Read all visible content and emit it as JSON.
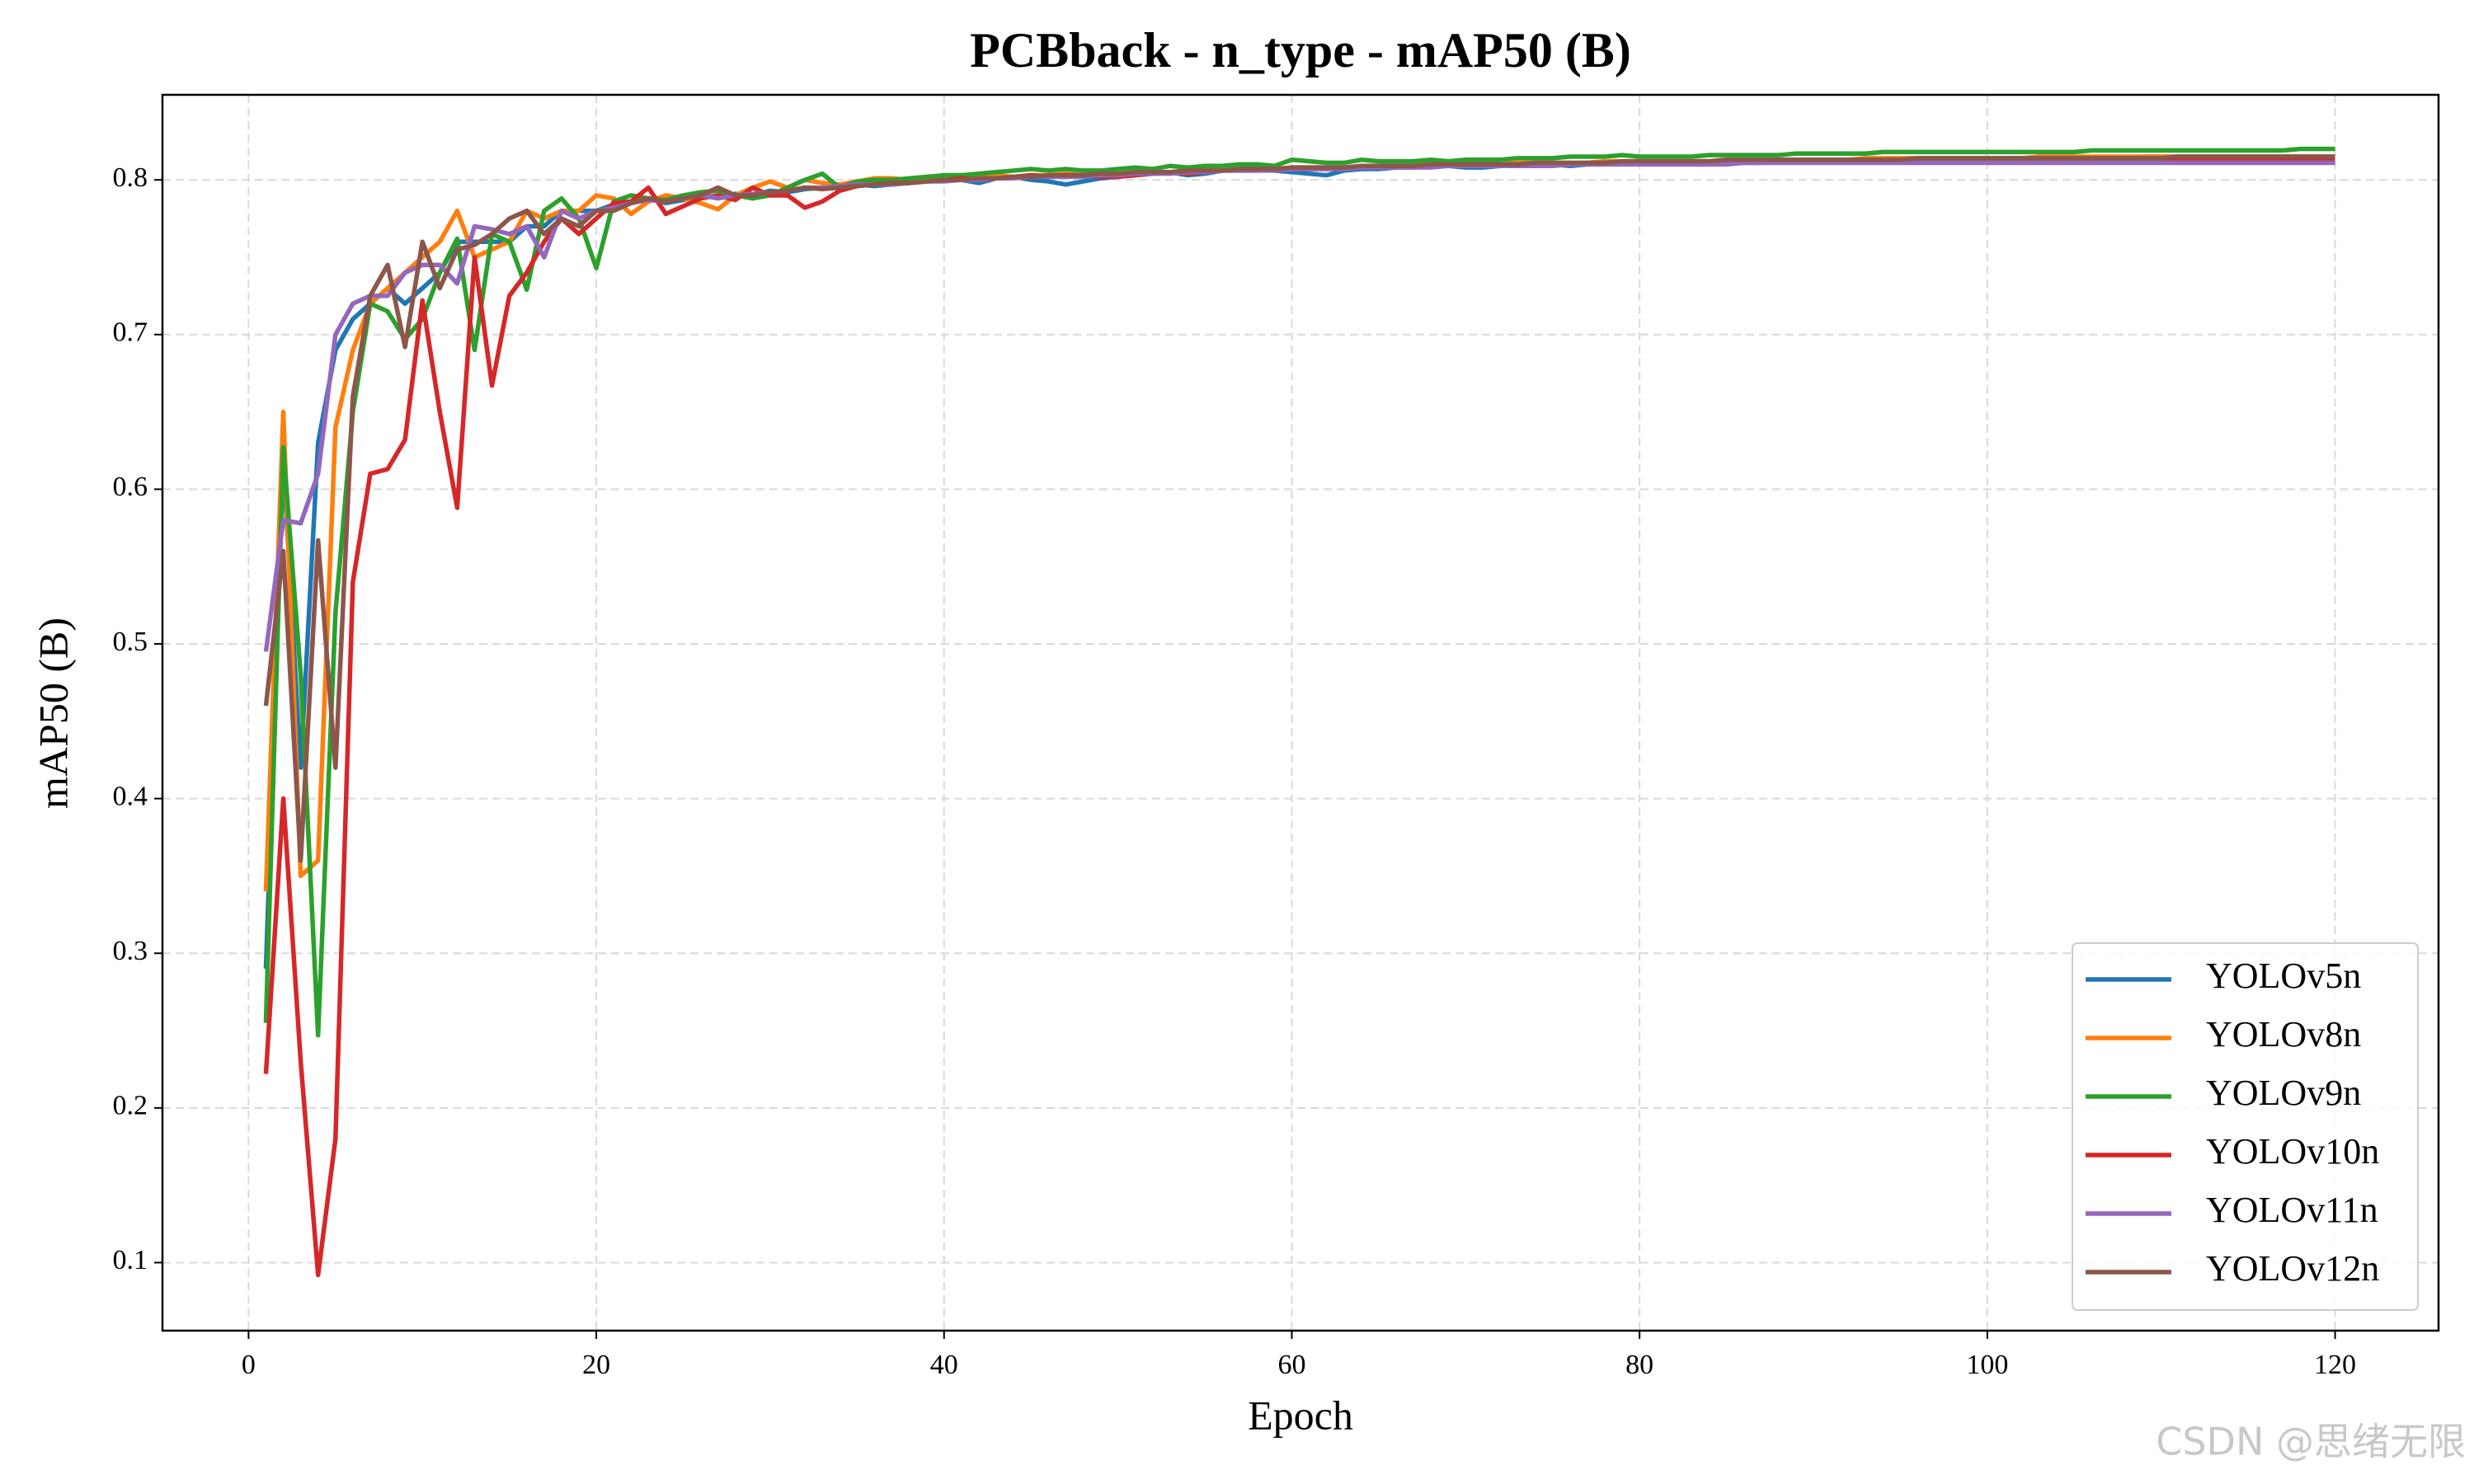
{
  "chart_data": {
    "type": "line",
    "title": "PCBback - n_type - mAP50 (B)",
    "xlabel": "Epoch",
    "ylabel": "mAP50 (B)",
    "x": [
      1,
      2,
      3,
      4,
      5,
      6,
      7,
      8,
      9,
      10,
      11,
      12,
      13,
      14,
      15,
      16,
      17,
      18,
      19,
      20,
      21,
      22,
      23,
      24,
      25,
      26,
      27,
      28,
      29,
      30,
      31,
      32,
      33,
      34,
      35,
      36,
      37,
      38,
      39,
      40,
      41,
      42,
      43,
      44,
      45,
      46,
      47,
      48,
      49,
      50,
      51,
      52,
      53,
      54,
      55,
      56,
      57,
      58,
      59,
      60,
      61,
      62,
      63,
      64,
      65,
      66,
      67,
      68,
      69,
      70,
      71,
      72,
      73,
      74,
      75,
      76,
      77,
      78,
      79,
      80,
      81,
      82,
      83,
      84,
      85,
      86,
      87,
      88,
      89,
      90,
      91,
      92,
      93,
      94,
      95,
      96,
      97,
      98,
      99,
      100,
      101,
      102,
      103,
      104,
      105,
      106,
      107,
      108,
      109,
      110,
      111,
      112,
      113,
      114,
      115,
      116,
      117,
      118,
      119,
      120
    ],
    "xlim": [
      -4.95,
      125.95
    ],
    "xticks": [
      0,
      20,
      40,
      60,
      80,
      100,
      120
    ],
    "ylim": [
      0.056,
      0.855
    ],
    "yticks": [
      0.1,
      0.2,
      0.3,
      0.4,
      0.5,
      0.6,
      0.7,
      0.8
    ],
    "grid": true,
    "legend": "lower right",
    "series": [
      {
        "name": "YOLOv5n",
        "color": "#1f77b4",
        "values": [
          0.29,
          0.62,
          0.42,
          0.63,
          0.69,
          0.71,
          0.72,
          0.73,
          0.72,
          0.73,
          0.74,
          0.76,
          0.76,
          0.76,
          0.76,
          0.77,
          0.77,
          0.78,
          0.78,
          0.78,
          0.784,
          0.786,
          0.788,
          0.785,
          0.787,
          0.79,
          0.789,
          0.791,
          0.79,
          0.793,
          0.792,
          0.794,
          0.795,
          0.796,
          0.797,
          0.796,
          0.797,
          0.798,
          0.799,
          0.8,
          0.8,
          0.798,
          0.801,
          0.802,
          0.8,
          0.799,
          0.797,
          0.799,
          0.801,
          0.802,
          0.803,
          0.804,
          0.805,
          0.803,
          0.804,
          0.806,
          0.807,
          0.809,
          0.806,
          0.805,
          0.804,
          0.803,
          0.806,
          0.807,
          0.807,
          0.808,
          0.808,
          0.809,
          0.809,
          0.808,
          0.808,
          0.809,
          0.809,
          0.81,
          0.81,
          0.809,
          0.81,
          0.81,
          0.811,
          0.811,
          0.811,
          0.811,
          0.81,
          0.81,
          0.811,
          0.811,
          0.811,
          0.812,
          0.812,
          0.812,
          0.812,
          0.812,
          0.813,
          0.813,
          0.813,
          0.813,
          0.813,
          0.813,
          0.813,
          0.813,
          0.814,
          0.814,
          0.814,
          0.814,
          0.814,
          0.814,
          0.814,
          0.814,
          0.815,
          0.815,
          0.815,
          0.815,
          0.815,
          0.815,
          0.815,
          0.815,
          0.815,
          0.815,
          0.815,
          0.815
        ]
      },
      {
        "name": "YOLOv8n",
        "color": "#ff7f0e",
        "values": [
          0.34,
          0.65,
          0.35,
          0.36,
          0.64,
          0.69,
          0.72,
          0.73,
          0.74,
          0.75,
          0.76,
          0.78,
          0.75,
          0.755,
          0.76,
          0.78,
          0.775,
          0.78,
          0.78,
          0.79,
          0.788,
          0.778,
          0.786,
          0.79,
          0.788,
          0.785,
          0.781,
          0.79,
          0.795,
          0.799,
          0.795,
          0.8,
          0.798,
          0.797,
          0.799,
          0.801,
          0.801,
          0.8,
          0.801,
          0.802,
          0.802,
          0.801,
          0.803,
          0.802,
          0.803,
          0.803,
          0.804,
          0.803,
          0.804,
          0.804,
          0.805,
          0.805,
          0.805,
          0.806,
          0.806,
          0.806,
          0.807,
          0.807,
          0.807,
          0.808,
          0.808,
          0.808,
          0.808,
          0.809,
          0.809,
          0.809,
          0.809,
          0.81,
          0.81,
          0.81,
          0.81,
          0.81,
          0.811,
          0.811,
          0.811,
          0.811,
          0.811,
          0.812,
          0.812,
          0.812,
          0.812,
          0.812,
          0.812,
          0.812,
          0.813,
          0.813,
          0.813,
          0.813,
          0.813,
          0.813,
          0.813,
          0.813,
          0.814,
          0.814,
          0.814,
          0.814,
          0.814,
          0.814,
          0.814,
          0.814,
          0.814,
          0.814,
          0.815,
          0.815,
          0.815,
          0.815,
          0.815,
          0.815,
          0.815,
          0.815,
          0.815,
          0.815,
          0.815,
          0.815,
          0.815,
          0.815,
          0.815,
          0.815,
          0.815,
          0.815
        ]
      },
      {
        "name": "YOLOv9n",
        "color": "#2ca02c",
        "values": [
          0.255,
          0.627,
          0.48,
          0.247,
          0.52,
          0.65,
          0.72,
          0.715,
          0.697,
          0.71,
          0.74,
          0.762,
          0.69,
          0.765,
          0.76,
          0.729,
          0.78,
          0.788,
          0.775,
          0.743,
          0.786,
          0.79,
          0.788,
          0.787,
          0.79,
          0.792,
          0.793,
          0.79,
          0.788,
          0.79,
          0.795,
          0.8,
          0.804,
          0.795,
          0.799,
          0.8,
          0.8,
          0.801,
          0.802,
          0.803,
          0.803,
          0.804,
          0.805,
          0.806,
          0.807,
          0.806,
          0.807,
          0.806,
          0.806,
          0.807,
          0.808,
          0.807,
          0.809,
          0.808,
          0.809,
          0.809,
          0.81,
          0.81,
          0.809,
          0.813,
          0.812,
          0.811,
          0.811,
          0.813,
          0.812,
          0.812,
          0.812,
          0.813,
          0.812,
          0.813,
          0.813,
          0.813,
          0.814,
          0.814,
          0.814,
          0.815,
          0.815,
          0.815,
          0.816,
          0.815,
          0.815,
          0.815,
          0.815,
          0.816,
          0.816,
          0.816,
          0.816,
          0.816,
          0.817,
          0.817,
          0.817,
          0.817,
          0.817,
          0.818,
          0.818,
          0.818,
          0.818,
          0.818,
          0.818,
          0.818,
          0.818,
          0.818,
          0.818,
          0.818,
          0.818,
          0.819,
          0.819,
          0.819,
          0.819,
          0.819,
          0.819,
          0.819,
          0.819,
          0.819,
          0.819,
          0.819,
          0.819,
          0.82,
          0.82,
          0.82
        ]
      },
      {
        "name": "YOLOv10n",
        "color": "#d62728",
        "values": [
          0.222,
          0.4,
          0.23,
          0.092,
          0.18,
          0.54,
          0.61,
          0.613,
          0.632,
          0.722,
          0.65,
          0.588,
          0.75,
          0.667,
          0.725,
          0.74,
          0.76,
          0.775,
          0.765,
          0.775,
          0.785,
          0.786,
          0.795,
          0.778,
          0.783,
          0.788,
          0.79,
          0.787,
          0.795,
          0.79,
          0.79,
          0.782,
          0.786,
          0.793,
          0.796,
          0.797,
          0.798,
          0.798,
          0.799,
          0.8,
          0.801,
          0.8,
          0.801,
          0.802,
          0.803,
          0.802,
          0.803,
          0.803,
          0.802,
          0.802,
          0.803,
          0.804,
          0.805,
          0.804,
          0.805,
          0.806,
          0.806,
          0.806,
          0.807,
          0.807,
          0.807,
          0.807,
          0.808,
          0.808,
          0.808,
          0.809,
          0.809,
          0.809,
          0.809,
          0.81,
          0.81,
          0.81,
          0.81,
          0.81,
          0.81,
          0.81,
          0.811,
          0.811,
          0.811,
          0.811,
          0.811,
          0.811,
          0.811,
          0.811,
          0.812,
          0.812,
          0.812,
          0.812,
          0.812,
          0.812,
          0.812,
          0.812,
          0.812,
          0.812,
          0.812,
          0.812,
          0.812,
          0.813,
          0.813,
          0.813,
          0.813,
          0.813,
          0.813,
          0.813,
          0.813,
          0.813,
          0.813,
          0.813,
          0.813,
          0.813,
          0.813,
          0.813,
          0.813,
          0.813,
          0.813,
          0.813,
          0.813,
          0.813,
          0.813,
          0.813
        ]
      },
      {
        "name": "YOLOv11n",
        "color": "#9467bd",
        "values": [
          0.495,
          0.58,
          0.578,
          0.61,
          0.7,
          0.72,
          0.725,
          0.725,
          0.74,
          0.745,
          0.745,
          0.733,
          0.77,
          0.768,
          0.765,
          0.77,
          0.75,
          0.78,
          0.775,
          0.78,
          0.782,
          0.785,
          0.787,
          0.786,
          0.788,
          0.79,
          0.788,
          0.79,
          0.791,
          0.792,
          0.793,
          0.795,
          0.795,
          0.796,
          0.797,
          0.797,
          0.797,
          0.798,
          0.799,
          0.799,
          0.8,
          0.8,
          0.801,
          0.801,
          0.802,
          0.802,
          0.802,
          0.802,
          0.803,
          0.803,
          0.804,
          0.804,
          0.804,
          0.805,
          0.805,
          0.806,
          0.806,
          0.806,
          0.806,
          0.807,
          0.807,
          0.807,
          0.807,
          0.808,
          0.808,
          0.808,
          0.808,
          0.808,
          0.809,
          0.809,
          0.809,
          0.809,
          0.809,
          0.809,
          0.809,
          0.81,
          0.81,
          0.81,
          0.81,
          0.81,
          0.81,
          0.81,
          0.81,
          0.81,
          0.81,
          0.811,
          0.811,
          0.811,
          0.811,
          0.811,
          0.811,
          0.811,
          0.811,
          0.811,
          0.811,
          0.811,
          0.811,
          0.811,
          0.811,
          0.811,
          0.811,
          0.811,
          0.811,
          0.811,
          0.811,
          0.811,
          0.811,
          0.811,
          0.811,
          0.811,
          0.811,
          0.811,
          0.811,
          0.811,
          0.811,
          0.811,
          0.811,
          0.811,
          0.811,
          0.811
        ]
      },
      {
        "name": "YOLOv12n",
        "color": "#8c564b",
        "values": [
          0.46,
          0.56,
          0.36,
          0.567,
          0.42,
          0.66,
          0.725,
          0.745,
          0.692,
          0.76,
          0.73,
          0.755,
          0.758,
          0.765,
          0.775,
          0.78,
          0.765,
          0.775,
          0.77,
          0.78,
          0.78,
          0.785,
          0.788,
          0.786,
          0.788,
          0.79,
          0.795,
          0.79,
          0.79,
          0.792,
          0.793,
          0.795,
          0.794,
          0.795,
          0.796,
          0.797,
          0.798,
          0.798,
          0.799,
          0.8,
          0.8,
          0.801,
          0.801,
          0.802,
          0.802,
          0.803,
          0.803,
          0.803,
          0.804,
          0.804,
          0.805,
          0.805,
          0.805,
          0.806,
          0.806,
          0.806,
          0.807,
          0.807,
          0.807,
          0.808,
          0.808,
          0.808,
          0.808,
          0.809,
          0.809,
          0.809,
          0.809,
          0.81,
          0.81,
          0.81,
          0.81,
          0.81,
          0.81,
          0.811,
          0.811,
          0.811,
          0.811,
          0.811,
          0.812,
          0.812,
          0.812,
          0.812,
          0.812,
          0.812,
          0.813,
          0.813,
          0.813,
          0.813,
          0.813,
          0.813,
          0.813,
          0.813,
          0.813,
          0.813,
          0.813,
          0.814,
          0.814,
          0.814,
          0.814,
          0.814,
          0.814,
          0.814,
          0.814,
          0.814,
          0.814,
          0.814,
          0.814,
          0.814,
          0.814,
          0.814,
          0.815,
          0.815,
          0.815,
          0.815,
          0.815,
          0.815,
          0.815,
          0.815,
          0.815,
          0.815
        ]
      }
    ]
  },
  "watermark": "CSDN @思绪无限"
}
